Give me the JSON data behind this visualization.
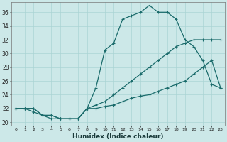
{
  "xlabel": "Humidex (Indice chaleur)",
  "xlim_min": -0.5,
  "xlim_max": 23.5,
  "ylim_min": 19.5,
  "ylim_max": 37.5,
  "xticks": [
    0,
    1,
    2,
    3,
    4,
    5,
    6,
    7,
    8,
    9,
    10,
    11,
    12,
    13,
    14,
    15,
    16,
    17,
    18,
    19,
    20,
    21,
    22,
    23
  ],
  "yticks": [
    20,
    22,
    24,
    26,
    28,
    30,
    32,
    34,
    36
  ],
  "bg_color": "#cce8e8",
  "line_color": "#1a6b6b",
  "grid_color": "#aad4d4",
  "line1_x": [
    0,
    1,
    2,
    3,
    4,
    5,
    6,
    7,
    8,
    9,
    10,
    11,
    12,
    13,
    14,
    15,
    16,
    17,
    18,
    19,
    20,
    21,
    22,
    23
  ],
  "line1_y": [
    22,
    22,
    22,
    21,
    21,
    20.5,
    20.5,
    20.5,
    22,
    25,
    30.5,
    31.5,
    35,
    35.5,
    36,
    37,
    36,
    36,
    35,
    32,
    31,
    29,
    25.5,
    25
  ],
  "line2_x": [
    0,
    1,
    2,
    3,
    4,
    5,
    6,
    7,
    8,
    9,
    10,
    11,
    12,
    13,
    14,
    15,
    16,
    17,
    18,
    19,
    20,
    21,
    22,
    23
  ],
  "line2_y": [
    22,
    22,
    21.5,
    21,
    20.5,
    20.5,
    20.5,
    20.5,
    22,
    22.5,
    23,
    24,
    25,
    26,
    27,
    28,
    29,
    30,
    31,
    31.5,
    32,
    32,
    32,
    32
  ],
  "line3_x": [
    0,
    1,
    2,
    3,
    4,
    5,
    6,
    7,
    8,
    9,
    10,
    11,
    12,
    13,
    14,
    15,
    16,
    17,
    18,
    19,
    20,
    21,
    22,
    23
  ],
  "line3_y": [
    22,
    22,
    22,
    21,
    21,
    20.5,
    20.5,
    20.5,
    22,
    22,
    22.3,
    22.5,
    23,
    23.5,
    23.8,
    24,
    24.5,
    25,
    25.5,
    26,
    27,
    28,
    29,
    25
  ]
}
